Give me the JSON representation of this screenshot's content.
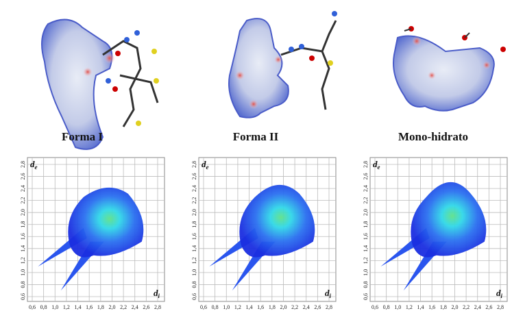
{
  "panels": [
    {
      "title": "Forma I",
      "y_label": [
        "d",
        "e"
      ],
      "x_label": [
        "d",
        "i"
      ]
    },
    {
      "title": "Forma II",
      "y_label": [
        "d",
        "e"
      ],
      "x_label": [
        "d",
        "i"
      ]
    },
    {
      "title": "Mono-hidrato",
      "y_label": [
        "d",
        "e"
      ],
      "x_label": [
        "d",
        "i"
      ]
    }
  ],
  "axis_ticks": [
    {
      "value": 0.6,
      "label": "0,6"
    },
    {
      "value": 0.8,
      "label": "0,8"
    },
    {
      "value": 1.0,
      "label": "1,0"
    },
    {
      "value": 1.2,
      "label": "1,2"
    },
    {
      "value": 1.4,
      "label": "1,4"
    },
    {
      "value": 1.6,
      "label": "1,6"
    },
    {
      "value": 1.8,
      "label": "1,8"
    },
    {
      "value": 2.0,
      "label": "2,0"
    },
    {
      "value": 2.2,
      "label": "2,2"
    },
    {
      "value": 2.4,
      "label": "2,4"
    },
    {
      "value": 2.6,
      "label": "2,6"
    },
    {
      "value": 2.8,
      "label": "2,8"
    }
  ]
}
